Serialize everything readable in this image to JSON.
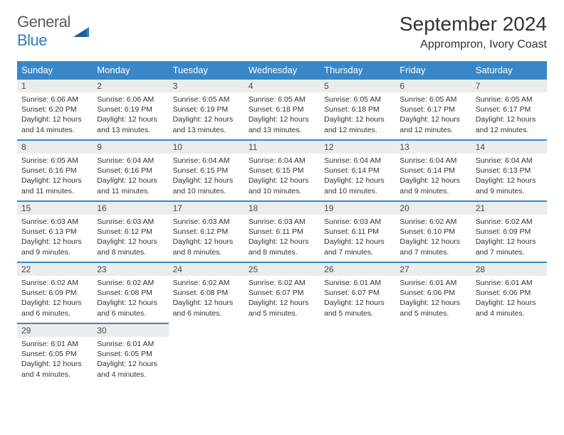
{
  "logo": {
    "word1": "General",
    "word2": "Blue"
  },
  "title": "September 2024",
  "location": "Apprompron, Ivory Coast",
  "colors": {
    "header_bg": "#3a87c8",
    "header_text": "#ffffff",
    "daynum_bg": "#ebeced",
    "row_border": "#3a87c8",
    "logo_blue": "#2f7bbf",
    "text": "#333333",
    "background": "#ffffff"
  },
  "day_headers": [
    "Sunday",
    "Monday",
    "Tuesday",
    "Wednesday",
    "Thursday",
    "Friday",
    "Saturday"
  ],
  "weeks": [
    [
      {
        "n": "1",
        "sr": "6:06 AM",
        "ss": "6:20 PM",
        "dl": "12 hours and 14 minutes."
      },
      {
        "n": "2",
        "sr": "6:06 AM",
        "ss": "6:19 PM",
        "dl": "12 hours and 13 minutes."
      },
      {
        "n": "3",
        "sr": "6:05 AM",
        "ss": "6:19 PM",
        "dl": "12 hours and 13 minutes."
      },
      {
        "n": "4",
        "sr": "6:05 AM",
        "ss": "6:18 PM",
        "dl": "12 hours and 13 minutes."
      },
      {
        "n": "5",
        "sr": "6:05 AM",
        "ss": "6:18 PM",
        "dl": "12 hours and 12 minutes."
      },
      {
        "n": "6",
        "sr": "6:05 AM",
        "ss": "6:17 PM",
        "dl": "12 hours and 12 minutes."
      },
      {
        "n": "7",
        "sr": "6:05 AM",
        "ss": "6:17 PM",
        "dl": "12 hours and 12 minutes."
      }
    ],
    [
      {
        "n": "8",
        "sr": "6:05 AM",
        "ss": "6:16 PM",
        "dl": "12 hours and 11 minutes."
      },
      {
        "n": "9",
        "sr": "6:04 AM",
        "ss": "6:16 PM",
        "dl": "12 hours and 11 minutes."
      },
      {
        "n": "10",
        "sr": "6:04 AM",
        "ss": "6:15 PM",
        "dl": "12 hours and 10 minutes."
      },
      {
        "n": "11",
        "sr": "6:04 AM",
        "ss": "6:15 PM",
        "dl": "12 hours and 10 minutes."
      },
      {
        "n": "12",
        "sr": "6:04 AM",
        "ss": "6:14 PM",
        "dl": "12 hours and 10 minutes."
      },
      {
        "n": "13",
        "sr": "6:04 AM",
        "ss": "6:14 PM",
        "dl": "12 hours and 9 minutes."
      },
      {
        "n": "14",
        "sr": "6:04 AM",
        "ss": "6:13 PM",
        "dl": "12 hours and 9 minutes."
      }
    ],
    [
      {
        "n": "15",
        "sr": "6:03 AM",
        "ss": "6:13 PM",
        "dl": "12 hours and 9 minutes."
      },
      {
        "n": "16",
        "sr": "6:03 AM",
        "ss": "6:12 PM",
        "dl": "12 hours and 8 minutes."
      },
      {
        "n": "17",
        "sr": "6:03 AM",
        "ss": "6:12 PM",
        "dl": "12 hours and 8 minutes."
      },
      {
        "n": "18",
        "sr": "6:03 AM",
        "ss": "6:11 PM",
        "dl": "12 hours and 8 minutes."
      },
      {
        "n": "19",
        "sr": "6:03 AM",
        "ss": "6:11 PM",
        "dl": "12 hours and 7 minutes."
      },
      {
        "n": "20",
        "sr": "6:02 AM",
        "ss": "6:10 PM",
        "dl": "12 hours and 7 minutes."
      },
      {
        "n": "21",
        "sr": "6:02 AM",
        "ss": "6:09 PM",
        "dl": "12 hours and 7 minutes."
      }
    ],
    [
      {
        "n": "22",
        "sr": "6:02 AM",
        "ss": "6:09 PM",
        "dl": "12 hours and 6 minutes."
      },
      {
        "n": "23",
        "sr": "6:02 AM",
        "ss": "6:08 PM",
        "dl": "12 hours and 6 minutes."
      },
      {
        "n": "24",
        "sr": "6:02 AM",
        "ss": "6:08 PM",
        "dl": "12 hours and 6 minutes."
      },
      {
        "n": "25",
        "sr": "6:02 AM",
        "ss": "6:07 PM",
        "dl": "12 hours and 5 minutes."
      },
      {
        "n": "26",
        "sr": "6:01 AM",
        "ss": "6:07 PM",
        "dl": "12 hours and 5 minutes."
      },
      {
        "n": "27",
        "sr": "6:01 AM",
        "ss": "6:06 PM",
        "dl": "12 hours and 5 minutes."
      },
      {
        "n": "28",
        "sr": "6:01 AM",
        "ss": "6:06 PM",
        "dl": "12 hours and 4 minutes."
      }
    ],
    [
      {
        "n": "29",
        "sr": "6:01 AM",
        "ss": "6:05 PM",
        "dl": "12 hours and 4 minutes."
      },
      {
        "n": "30",
        "sr": "6:01 AM",
        "ss": "6:05 PM",
        "dl": "12 hours and 4 minutes."
      },
      null,
      null,
      null,
      null,
      null
    ]
  ],
  "labels": {
    "sunrise": "Sunrise:",
    "sunset": "Sunset:",
    "daylight": "Daylight:"
  },
  "typography": {
    "title_fontsize": 28,
    "location_fontsize": 16,
    "header_fontsize": 13,
    "daynum_fontsize": 12,
    "body_fontsize": 10.5
  }
}
